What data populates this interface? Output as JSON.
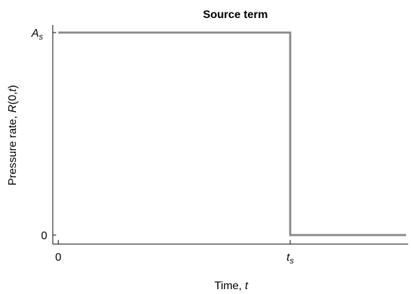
{
  "chart_data": {
    "type": "line",
    "title": "Source term",
    "xlabel": {
      "text": "Time, ",
      "var": "t"
    },
    "ylabel": {
      "text": "Pressure rate, ",
      "func": "R",
      "args": "(0,",
      "var": "t",
      "close": ")"
    },
    "xlim": [
      0,
      1.5
    ],
    "ylim": [
      0,
      1
    ],
    "x_ticks": [
      {
        "value": 0,
        "label": "0"
      },
      {
        "value": 1,
        "label": "t",
        "sub": "s"
      }
    ],
    "y_ticks": [
      {
        "value": 0,
        "label": "0"
      },
      {
        "value": 1,
        "label": "A",
        "sub": "s"
      }
    ],
    "series": [
      {
        "x": [
          0,
          1,
          1,
          1.5
        ],
        "y": [
          1,
          1,
          0,
          0
        ]
      }
    ],
    "grid": false,
    "legend": "none",
    "line_color": "#8a8a8a"
  }
}
